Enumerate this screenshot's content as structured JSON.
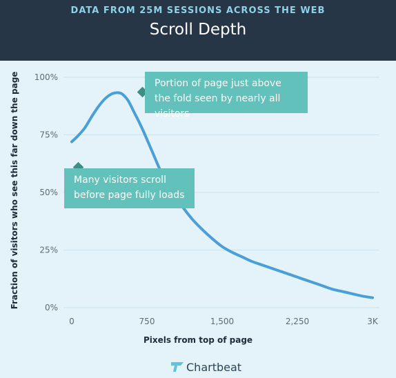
{
  "header": {
    "subtitle": "DATA FROM 25M SESSIONS ACROSS THE WEB",
    "title": "Scroll Depth"
  },
  "callouts": {
    "fold": "Portion of page just above the fold seen by nearly all visitors",
    "loading": "Many visitors scroll before page fully loads"
  },
  "brand": {
    "name": "Chartbeat"
  },
  "colors": {
    "header_bg": "#263646",
    "plot_bg": "#e3f3f9",
    "line": "#4a9fd8",
    "callout": "#62c2bb",
    "callout_marker": "#3d8f85"
  },
  "chart_data": {
    "type": "line",
    "title": "Scroll Depth",
    "subtitle": "DATA FROM 25M SESSIONS ACROSS THE WEB",
    "xlabel": "Pixels from top of page",
    "ylabel": "Fraction of visitors who see this far down the page",
    "x_ticks": [
      {
        "value": 0,
        "label": "0"
      },
      {
        "value": 750,
        "label": "750"
      },
      {
        "value": 1500,
        "label": "1,500"
      },
      {
        "value": 2250,
        "label": "2,250"
      },
      {
        "value": 3000,
        "label": "3K"
      }
    ],
    "y_ticks": [
      {
        "value": 0,
        "label": "0%"
      },
      {
        "value": 25,
        "label": "25%"
      },
      {
        "value": 50,
        "label": "50%"
      },
      {
        "value": 75,
        "label": "75%"
      },
      {
        "value": 100,
        "label": "100%"
      }
    ],
    "xlim": [
      0,
      3000
    ],
    "ylim": [
      0,
      100
    ],
    "grid": true,
    "series": [
      {
        "x": [
          0,
          60,
          130,
          200,
          270,
          340,
          400,
          450,
          500,
          560,
          620,
          700,
          800,
          900,
          1000,
          1100,
          1200,
          1300,
          1400,
          1500,
          1600,
          1700,
          1800,
          1900,
          2000,
          2100,
          2200,
          2300,
          2400,
          2500,
          2600,
          2700,
          2800,
          2900,
          3000
        ],
        "y": [
          72,
          74.5,
          78,
          83,
          87.5,
          91,
          92.8,
          93.3,
          92.8,
          90,
          85,
          78,
          68,
          58,
          50,
          44,
          38.5,
          34,
          30,
          26.5,
          24,
          22,
          20,
          18.5,
          17,
          15.5,
          14,
          12.5,
          11,
          9.5,
          8,
          7,
          6,
          5,
          4.3
        ]
      }
    ]
  }
}
